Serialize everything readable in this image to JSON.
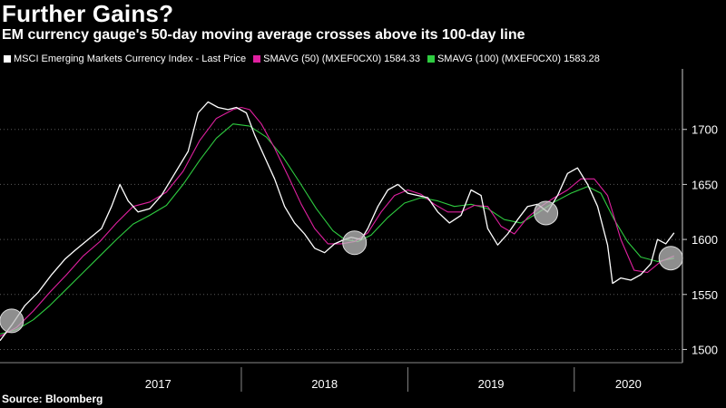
{
  "title": "Further Gains?",
  "subtitle": "EM currency gauge's 50-day moving average crosses above its 100-day line",
  "source": "Source: Bloomberg",
  "colors": {
    "price": "#ffffff",
    "sma50": "#e020a0",
    "sma100": "#2ecc40",
    "grid": "#5a5a5a",
    "background": "#000000"
  },
  "chart_data": {
    "type": "line",
    "legend": [
      {
        "key": "price",
        "label": "MSCI Emerging Markets Currency Index - Last Price"
      },
      {
        "key": "sma50",
        "label": "SMAVG (50) (MXEF0CX0) 1584.33"
      },
      {
        "key": "sma100",
        "label": "SMAVG (100) (MXEF0CX0) 1583.28"
      }
    ],
    "y_axis": {
      "position": "right",
      "ticks": [
        1500,
        1550,
        1600,
        1650,
        1700
      ],
      "ylim": [
        1488,
        1755
      ]
    },
    "x_axis": {
      "labels": [
        "2017",
        "2018",
        "2019",
        "2020"
      ],
      "xlim": [
        2016.55,
        2020.65
      ],
      "year_boundaries": [
        2017.0,
        2018.0,
        2019.0,
        2020.0
      ]
    },
    "series": [
      {
        "name": "price",
        "points": [
          [
            2016.55,
            1508
          ],
          [
            2016.62,
            1522
          ],
          [
            2016.7,
            1540
          ],
          [
            2016.78,
            1552
          ],
          [
            2016.86,
            1568
          ],
          [
            2016.94,
            1582
          ],
          [
            2017.0,
            1590
          ],
          [
            2017.08,
            1600
          ],
          [
            2017.16,
            1610
          ],
          [
            2017.22,
            1630
          ],
          [
            2017.27,
            1650
          ],
          [
            2017.32,
            1635
          ],
          [
            2017.38,
            1625
          ],
          [
            2017.45,
            1628
          ],
          [
            2017.52,
            1640
          ],
          [
            2017.6,
            1660
          ],
          [
            2017.68,
            1680
          ],
          [
            2017.74,
            1715
          ],
          [
            2017.8,
            1725
          ],
          [
            2017.86,
            1720
          ],
          [
            2017.92,
            1718
          ],
          [
            2017.97,
            1720
          ],
          [
            2018.03,
            1715
          ],
          [
            2018.08,
            1695
          ],
          [
            2018.14,
            1675
          ],
          [
            2018.2,
            1655
          ],
          [
            2018.26,
            1630
          ],
          [
            2018.32,
            1615
          ],
          [
            2018.38,
            1605
          ],
          [
            2018.44,
            1592
          ],
          [
            2018.5,
            1588
          ],
          [
            2018.56,
            1596
          ],
          [
            2018.62,
            1600
          ],
          [
            2018.66,
            1602
          ],
          [
            2018.72,
            1600
          ],
          [
            2018.76,
            1610
          ],
          [
            2018.82,
            1630
          ],
          [
            2018.88,
            1645
          ],
          [
            2018.94,
            1650
          ],
          [
            2019.0,
            1642
          ],
          [
            2019.06,
            1640
          ],
          [
            2019.12,
            1638
          ],
          [
            2019.18,
            1625
          ],
          [
            2019.25,
            1615
          ],
          [
            2019.32,
            1622
          ],
          [
            2019.38,
            1645
          ],
          [
            2019.44,
            1640
          ],
          [
            2019.48,
            1610
          ],
          [
            2019.54,
            1595
          ],
          [
            2019.6,
            1605
          ],
          [
            2019.66,
            1618
          ],
          [
            2019.72,
            1630
          ],
          [
            2019.78,
            1632
          ],
          [
            2019.84,
            1625
          ],
          [
            2019.9,
            1640
          ],
          [
            2019.96,
            1660
          ],
          [
            2020.02,
            1665
          ],
          [
            2020.08,
            1650
          ],
          [
            2020.14,
            1630
          ],
          [
            2020.2,
            1595
          ],
          [
            2020.23,
            1560
          ],
          [
            2020.28,
            1565
          ],
          [
            2020.34,
            1563
          ],
          [
            2020.4,
            1568
          ],
          [
            2020.46,
            1578
          ],
          [
            2020.5,
            1600
          ],
          [
            2020.55,
            1596
          ],
          [
            2020.6,
            1606
          ]
        ]
      },
      {
        "name": "sma50",
        "points": [
          [
            2016.55,
            1512
          ],
          [
            2016.65,
            1520
          ],
          [
            2016.75,
            1535
          ],
          [
            2016.85,
            1552
          ],
          [
            2016.95,
            1568
          ],
          [
            2017.05,
            1585
          ],
          [
            2017.15,
            1598
          ],
          [
            2017.25,
            1615
          ],
          [
            2017.35,
            1630
          ],
          [
            2017.45,
            1634
          ],
          [
            2017.55,
            1643
          ],
          [
            2017.65,
            1662
          ],
          [
            2017.75,
            1690
          ],
          [
            2017.85,
            1710
          ],
          [
            2017.95,
            1718
          ],
          [
            2018.0,
            1720
          ],
          [
            2018.05,
            1718
          ],
          [
            2018.12,
            1705
          ],
          [
            2018.2,
            1683
          ],
          [
            2018.28,
            1658
          ],
          [
            2018.36,
            1632
          ],
          [
            2018.44,
            1610
          ],
          [
            2018.52,
            1596
          ],
          [
            2018.6,
            1596
          ],
          [
            2018.68,
            1598
          ],
          [
            2018.76,
            1606
          ],
          [
            2018.84,
            1625
          ],
          [
            2018.92,
            1640
          ],
          [
            2019.0,
            1645
          ],
          [
            2019.08,
            1641
          ],
          [
            2019.16,
            1632
          ],
          [
            2019.24,
            1625
          ],
          [
            2019.32,
            1625
          ],
          [
            2019.4,
            1631
          ],
          [
            2019.48,
            1630
          ],
          [
            2019.56,
            1612
          ],
          [
            2019.64,
            1605
          ],
          [
            2019.72,
            1620
          ],
          [
            2019.8,
            1630
          ],
          [
            2019.88,
            1638
          ],
          [
            2019.96,
            1645
          ],
          [
            2020.04,
            1655
          ],
          [
            2020.12,
            1655
          ],
          [
            2020.2,
            1640
          ],
          [
            2020.28,
            1600
          ],
          [
            2020.36,
            1572
          ],
          [
            2020.44,
            1570
          ],
          [
            2020.52,
            1580
          ],
          [
            2020.6,
            1585
          ]
        ]
      },
      {
        "name": "sma100",
        "points": [
          [
            2016.55,
            1514
          ],
          [
            2016.65,
            1518
          ],
          [
            2016.75,
            1527
          ],
          [
            2016.85,
            1540
          ],
          [
            2016.95,
            1555
          ],
          [
            2017.05,
            1570
          ],
          [
            2017.15,
            1585
          ],
          [
            2017.25,
            1600
          ],
          [
            2017.35,
            1614
          ],
          [
            2017.45,
            1622
          ],
          [
            2017.55,
            1631
          ],
          [
            2017.65,
            1650
          ],
          [
            2017.75,
            1672
          ],
          [
            2017.85,
            1692
          ],
          [
            2017.95,
            1705
          ],
          [
            2018.05,
            1703
          ],
          [
            2018.15,
            1693
          ],
          [
            2018.25,
            1675
          ],
          [
            2018.35,
            1652
          ],
          [
            2018.45,
            1628
          ],
          [
            2018.55,
            1608
          ],
          [
            2018.62,
            1600
          ],
          [
            2018.7,
            1598
          ],
          [
            2018.78,
            1604
          ],
          [
            2018.88,
            1620
          ],
          [
            2018.98,
            1633
          ],
          [
            2019.08,
            1638
          ],
          [
            2019.18,
            1635
          ],
          [
            2019.28,
            1630
          ],
          [
            2019.38,
            1632
          ],
          [
            2019.48,
            1628
          ],
          [
            2019.58,
            1618
          ],
          [
            2019.68,
            1615
          ],
          [
            2019.78,
            1624
          ],
          [
            2019.88,
            1634
          ],
          [
            2019.98,
            1642
          ],
          [
            2020.08,
            1648
          ],
          [
            2020.16,
            1642
          ],
          [
            2020.24,
            1618
          ],
          [
            2020.32,
            1598
          ],
          [
            2020.4,
            1584
          ],
          [
            2020.5,
            1580
          ],
          [
            2020.6,
            1583
          ]
        ]
      }
    ],
    "crossover_markers": [
      {
        "x": 2016.62,
        "y": 1526
      },
      {
        "x": 2018.68,
        "y": 1597
      },
      {
        "x": 2019.83,
        "y": 1624
      },
      {
        "x": 2020.58,
        "y": 1583
      }
    ]
  }
}
